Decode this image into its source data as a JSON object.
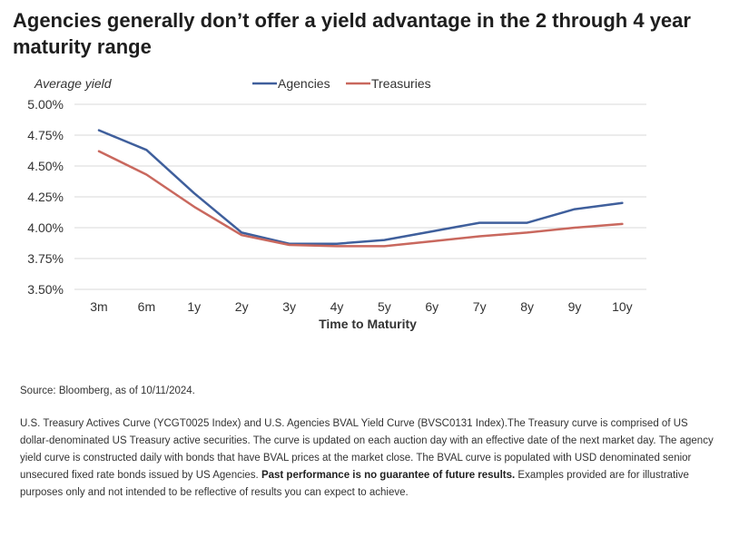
{
  "title": "Agencies generally don’t offer a yield advantage in the 2 through 4 year maturity range",
  "chart_data": {
    "type": "line",
    "categories": [
      "3m",
      "6m",
      "1y",
      "2y",
      "3y",
      "4y",
      "5y",
      "6y",
      "7y",
      "8y",
      "9y",
      "10y"
    ],
    "series": [
      {
        "name": "Agencies",
        "color": "#3f5f9c",
        "values": [
          4.79,
          4.63,
          4.28,
          3.96,
          3.87,
          3.87,
          3.9,
          3.97,
          4.04,
          4.04,
          4.15,
          4.2
        ]
      },
      {
        "name": "Treasuries",
        "color": "#c9685e",
        "values": [
          4.62,
          4.43,
          4.17,
          3.94,
          3.86,
          3.85,
          3.85,
          3.89,
          3.93,
          3.96,
          4.0,
          4.03
        ]
      }
    ],
    "y_ticks": [
      "5.00%",
      "4.75%",
      "4.50%",
      "4.25%",
      "4.00%",
      "3.75%",
      "3.50%"
    ],
    "ylim": [
      3.5,
      5.0
    ],
    "ylabel": "Average yield",
    "xlabel": "Time to Maturity",
    "grid": "horizontal",
    "legend_position": "top"
  },
  "footer": {
    "source": "Source: Bloomberg, as of 10/11/2024.",
    "notes": "U.S. Treasury Actives Curve (YCGT0025 Index) and U.S. Agencies BVAL Yield Curve (BVSC0131 Index).The Treasury curve is comprised of US dollar-denominated US Treasury active securities. The curve is updated on each auction day with an effective date of the next market day. The agency yield curve is constructed daily with bonds that have BVAL prices at the market close.  The BVAL curve is populated with USD denominated senior unsecured fixed rate bonds issued by US Agencies. ",
    "notes_bold": "Past performance is no guarantee of future results.",
    "notes_end": " Examples provided are for illustrative purposes only and not intended to be reflective of results you can expect to achieve."
  }
}
